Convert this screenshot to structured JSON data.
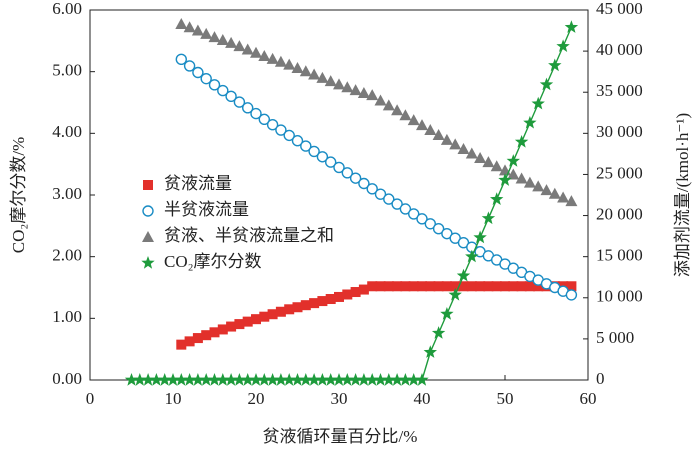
{
  "chart_data": {
    "type": "scatter",
    "xlabel": "贫液循环量百分比/%",
    "ylabel": "CO₂摩尔分数/%",
    "y2label": "添加剂流量/(kmol·h⁻¹)",
    "xlim": [
      0,
      60
    ],
    "xticks": [
      0,
      10,
      20,
      30,
      40,
      50,
      60
    ],
    "ylim": [
      0,
      6
    ],
    "yticks": [
      {
        "value": 0,
        "label": "0.00"
      },
      {
        "value": 1,
        "label": "1.00"
      },
      {
        "value": 2,
        "label": "2.00"
      },
      {
        "value": 3,
        "label": "3.00"
      },
      {
        "value": 4,
        "label": "4.00"
      },
      {
        "value": 5,
        "label": "5.00"
      },
      {
        "value": 6,
        "label": "6.00"
      }
    ],
    "y2lim": [
      0,
      45000
    ],
    "y2ticks": [
      0,
      {
        "value": 5000,
        "label": "5 000"
      },
      {
        "value": 10000,
        "label": "10 000"
      },
      {
        "value": 15000,
        "label": "15 000"
      },
      {
        "value": 20000,
        "label": "20 000"
      },
      {
        "value": 25000,
        "label": "25 000"
      },
      {
        "value": 30000,
        "label": "30 000"
      },
      {
        "value": 35000,
        "label": "35 000"
      },
      {
        "value": 40000,
        "label": "40 000"
      },
      {
        "value": 45000,
        "label": "45 000"
      }
    ],
    "legend": "left",
    "series": [
      {
        "name": "贫液流量",
        "color": "#e2302b",
        "marker": "square",
        "axis": "y2",
        "x": [
          11,
          12,
          13,
          14,
          15,
          16,
          17,
          18,
          19,
          20,
          21,
          22,
          23,
          24,
          25,
          26,
          27,
          28,
          29,
          30,
          31,
          32,
          33,
          34,
          35,
          36,
          37,
          38,
          39,
          40,
          41,
          42,
          43,
          44,
          45,
          46,
          47,
          48,
          49,
          50,
          51,
          52,
          53,
          54,
          55,
          56,
          57,
          58
        ],
        "values": [
          4300,
          4700,
          5100,
          5450,
          5800,
          6150,
          6500,
          6800,
          7100,
          7400,
          7700,
          8000,
          8300,
          8600,
          8850,
          9100,
          9350,
          9600,
          9850,
          10100,
          10400,
          10700,
          11000,
          11400,
          11400,
          11400,
          11400,
          11400,
          11400,
          11400,
          11400,
          11400,
          11400,
          11400,
          11400,
          11400,
          11400,
          11400,
          11400,
          11400,
          11400,
          11400,
          11400,
          11400,
          11400,
          11400,
          11400,
          11400
        ]
      },
      {
        "name": "半贫液流量",
        "color": "#1a8cc4",
        "marker": "circle",
        "axis": "y2",
        "x": [
          11,
          12,
          13,
          14,
          15,
          16,
          17,
          18,
          19,
          20,
          21,
          22,
          23,
          24,
          25,
          26,
          27,
          28,
          29,
          30,
          31,
          32,
          33,
          34,
          35,
          36,
          37,
          38,
          39,
          40,
          41,
          42,
          43,
          44,
          45,
          46,
          47,
          48,
          49,
          50,
          51,
          52,
          53,
          54,
          55,
          56,
          57,
          58
        ],
        "values": [
          39000,
          38200,
          37400,
          36650,
          35900,
          35200,
          34500,
          33800,
          33100,
          32400,
          31700,
          31050,
          30400,
          29750,
          29100,
          28450,
          27800,
          27150,
          26500,
          25850,
          25200,
          24550,
          23900,
          23250,
          22600,
          22000,
          21400,
          20800,
          20200,
          19600,
          19000,
          18400,
          17800,
          17250,
          16700,
          16150,
          15600,
          15100,
          14600,
          14100,
          13600,
          13100,
          12600,
          12150,
          11700,
          11250,
          10800,
          10350
        ]
      },
      {
        "name": "贫液、半贫液流量之和",
        "color": "#7a7a7a",
        "marker": "triangle",
        "axis": "y2",
        "x": [
          11,
          12,
          13,
          14,
          15,
          16,
          17,
          18,
          19,
          20,
          21,
          22,
          23,
          24,
          25,
          26,
          27,
          28,
          29,
          30,
          31,
          32,
          33,
          34,
          35,
          36,
          37,
          38,
          39,
          40,
          41,
          42,
          43,
          44,
          45,
          46,
          47,
          48,
          49,
          50,
          51,
          52,
          53,
          54,
          55,
          56,
          57,
          58
        ],
        "values": [
          43300,
          42900,
          42500,
          42100,
          41700,
          41350,
          41000,
          40600,
          40200,
          39800,
          39400,
          39050,
          38700,
          38350,
          37950,
          37550,
          37150,
          36750,
          36350,
          35950,
          35600,
          35250,
          34900,
          34650,
          34000,
          33400,
          32800,
          32200,
          31600,
          31000,
          30400,
          29800,
          29200,
          28650,
          28100,
          27550,
          27000,
          26500,
          26000,
          25500,
          25000,
          24500,
          24000,
          23550,
          23100,
          22650,
          22200,
          21750
        ]
      },
      {
        "name": "CO₂摩尔分数",
        "color": "#1e9b3c",
        "marker": "star",
        "line": true,
        "x": [
          5,
          6,
          7,
          8,
          9,
          10,
          11,
          12,
          13,
          14,
          15,
          16,
          17,
          18,
          19,
          20,
          21,
          22,
          23,
          24,
          25,
          26,
          27,
          28,
          29,
          30,
          31,
          32,
          33,
          34,
          35,
          36,
          37,
          38,
          39,
          40,
          41,
          42,
          43,
          44,
          45,
          46,
          47,
          48,
          49,
          50,
          51,
          52,
          53,
          54,
          55,
          56,
          57,
          58
        ],
        "values": [
          0,
          0,
          0,
          0,
          0,
          0,
          0,
          0,
          0,
          0,
          0,
          0,
          0,
          0,
          0,
          0,
          0,
          0,
          0,
          0,
          0,
          0,
          0,
          0,
          0,
          0,
          0,
          0,
          0,
          0,
          0,
          0,
          0,
          0,
          0,
          0,
          0.45,
          0.76,
          1.07,
          1.38,
          1.69,
          2.0,
          2.31,
          2.62,
          2.93,
          3.24,
          3.55,
          3.86,
          4.17,
          4.48,
          4.79,
          5.1,
          5.41,
          5.72
        ]
      }
    ]
  }
}
